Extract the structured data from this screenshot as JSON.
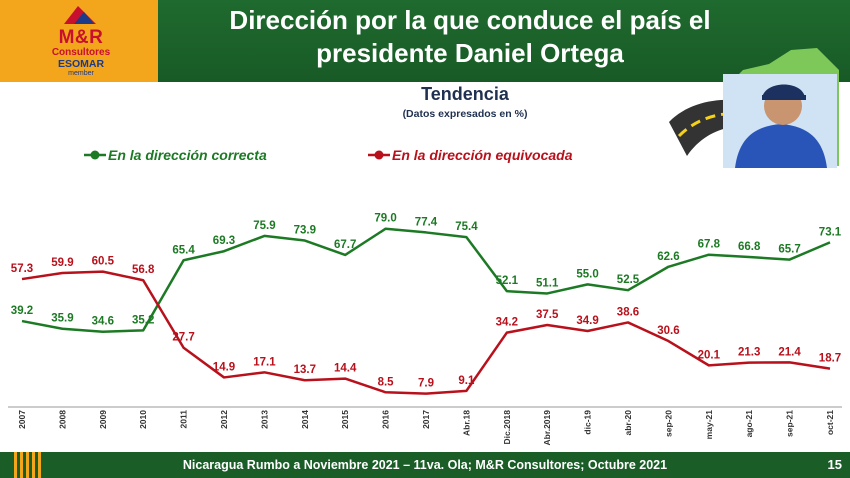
{
  "header": {
    "title_line1": "Dirección por la que conduce el país el",
    "title_line2": "presidente Daniel Ortega",
    "logo": {
      "brand": "M&R",
      "sub": "Consultores",
      "esomar": "ESOMAR",
      "member": "member"
    }
  },
  "colors": {
    "header_green": "#1f6a2e",
    "correct": "#1d7a24",
    "wrong": "#b8111c",
    "logo_orange": "#f3a51c"
  },
  "footer": {
    "text": "Nicaragua Rumbo a Noviembre 2021 – 11va. Ola; M&R Consultores; Octubre 2021",
    "page": "15"
  },
  "chart_data": {
    "type": "line",
    "title": "Tendencia",
    "subtitle": "(Datos expresados en %)",
    "categories": [
      "2007",
      "2008",
      "2009",
      "2010",
      "2011",
      "2012",
      "2013",
      "2014",
      "2015",
      "2016",
      "2017",
      "Abr.18",
      "Dic.2018",
      "Abr.2019",
      "dic-19",
      "abr-20",
      "sep-20",
      "may-21",
      "ago-21",
      "sep-21",
      "oct-21"
    ],
    "series": [
      {
        "name": "En la dirección correcta",
        "color": "#1d7a24",
        "labels": [
          "39.2",
          "35.9",
          "34.6",
          "35.2",
          "65.4",
          "69.3",
          "75.9",
          "73.9",
          "67.7",
          "79.0",
          "77.4",
          "75.4",
          "52.1",
          "51.1",
          "55.0",
          "52.5",
          "62.6",
          "67.8",
          "66.8",
          "65.7",
          "73.1"
        ],
        "values": [
          39.2,
          35.9,
          34.6,
          35.2,
          65.4,
          69.3,
          75.9,
          73.9,
          67.7,
          79.0,
          77.4,
          75.4,
          52.1,
          51.1,
          55.0,
          52.5,
          62.6,
          67.8,
          66.8,
          65.7,
          73.1
        ]
      },
      {
        "name": "En la dirección equivocada",
        "color": "#b8111c",
        "labels": [
          "57.3",
          "59.9",
          "60.5",
          "56.8",
          "27.7",
          "14.9",
          "17.1",
          "13.7",
          "14.4",
          "8.5",
          "7.9",
          "9.1",
          "34.2",
          "37.5",
          "34.9",
          "38.6",
          "30.6",
          "20.1",
          "21.3",
          "21.4",
          "18.7"
        ],
        "values": [
          57.3,
          59.9,
          60.5,
          56.8,
          27.7,
          14.9,
          17.1,
          13.7,
          14.4,
          8.5,
          7.9,
          9.1,
          34.2,
          37.5,
          34.9,
          38.6,
          30.6,
          20.1,
          21.3,
          21.4,
          18.7
        ]
      }
    ],
    "ylim": [
      0,
      90
    ],
    "xlabel": "",
    "ylabel": "",
    "grid": false,
    "legend": "top-left"
  }
}
